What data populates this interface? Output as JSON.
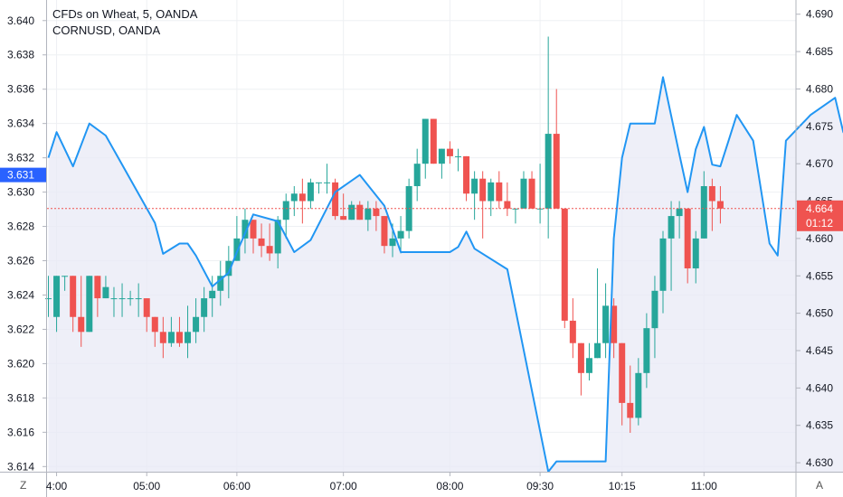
{
  "header": {
    "title": "CFDs on Wheat, 5, OANDA",
    "subtitle": "CORNUSD, OANDA"
  },
  "corner_left": "Z",
  "corner_right": "A",
  "colors": {
    "up": "#26a69a",
    "down": "#ef5350",
    "line": "#2196f3",
    "area": "#e8eaf6",
    "price_line": "#ef5350",
    "left_badge": "#2962ff"
  },
  "chart_data": {
    "type": "candlestick",
    "x_ticks": [
      "4:00",
      "05:00",
      "06:00",
      "07:00",
      "08:00",
      "09:30",
      "10:15",
      "11:00"
    ],
    "left_axis": {
      "ticks": [
        "3.640",
        "3.638",
        "3.636",
        "3.634",
        "3.632",
        "3.630",
        "3.628",
        "3.626",
        "3.624",
        "3.622",
        "3.620",
        "3.618",
        "3.616",
        "3.614"
      ],
      "range": [
        3.6137,
        3.6412
      ],
      "current_label": "3.631"
    },
    "right_axis": {
      "ticks": [
        "4.690",
        "4.685",
        "4.680",
        "4.675",
        "4.670",
        "4.665",
        "4.660",
        "4.655",
        "4.650",
        "4.645",
        "4.640",
        "4.635",
        "4.630"
      ],
      "range": [
        4.6288,
        4.6919
      ],
      "current_label": "4.664",
      "countdown_label": "01:12"
    },
    "candles_series": "CFDs on Wheat",
    "candles": [
      [
        4.652,
        4.655,
        4.6495,
        4.652
      ],
      [
        4.6495,
        4.655,
        4.6475,
        4.655
      ],
      [
        4.655,
        4.655,
        4.653,
        4.655
      ],
      [
        4.655,
        4.655,
        4.6475,
        4.6495
      ],
      [
        4.6495,
        4.655,
        4.6455,
        4.6475
      ],
      [
        4.6475,
        4.655,
        4.6475,
        4.655
      ],
      [
        4.655,
        4.655,
        4.6495,
        4.652
      ],
      [
        4.652,
        4.655,
        4.652,
        4.6535
      ],
      [
        4.652,
        4.6535,
        4.6495,
        4.652
      ],
      [
        4.652,
        4.654,
        4.6495,
        4.652
      ],
      [
        4.652,
        4.653,
        4.651,
        4.652
      ],
      [
        4.652,
        4.654,
        4.6495,
        4.652
      ],
      [
        4.652,
        4.652,
        4.6475,
        4.6495
      ],
      [
        4.6495,
        4.6495,
        4.6455,
        4.6475
      ],
      [
        4.6475,
        4.6495,
        4.644,
        4.646
      ],
      [
        4.646,
        4.6495,
        4.6455,
        4.6475
      ],
      [
        4.6475,
        4.6495,
        4.6455,
        4.646
      ],
      [
        4.646,
        4.651,
        4.644,
        4.6475
      ],
      [
        4.6475,
        4.652,
        4.646,
        4.6495
      ],
      [
        4.6495,
        4.6535,
        4.6475,
        4.652
      ],
      [
        4.652,
        4.655,
        4.6495,
        4.653
      ],
      [
        4.653,
        4.657,
        4.651,
        4.655
      ],
      [
        4.655,
        4.659,
        4.652,
        4.657
      ],
      [
        4.657,
        4.663,
        4.657,
        4.66
      ],
      [
        4.66,
        4.664,
        4.658,
        4.6625
      ],
      [
        4.6625,
        4.6625,
        4.658,
        4.66
      ],
      [
        4.66,
        4.662,
        4.6575,
        4.659
      ],
      [
        4.659,
        4.662,
        4.657,
        4.658
      ],
      [
        4.658,
        4.663,
        4.656,
        4.6625
      ],
      [
        4.6625,
        4.666,
        4.66,
        4.665
      ],
      [
        4.665,
        4.667,
        4.663,
        4.666
      ],
      [
        4.666,
        4.668,
        4.662,
        4.665
      ],
      [
        4.665,
        4.668,
        4.664,
        4.6675
      ],
      [
        4.6675,
        4.6675,
        4.666,
        4.6675
      ],
      [
        4.6675,
        4.67,
        4.666,
        4.6675
      ],
      [
        4.6675,
        4.668,
        4.6625,
        4.663
      ],
      [
        4.663,
        4.666,
        4.6625,
        4.6625
      ],
      [
        4.6625,
        4.665,
        4.6625,
        4.6645
      ],
      [
        4.6645,
        4.665,
        4.6625,
        4.6625
      ],
      [
        4.6625,
        4.665,
        4.661,
        4.664
      ],
      [
        4.664,
        4.665,
        4.661,
        4.663
      ],
      [
        4.663,
        4.663,
        4.658,
        4.659
      ],
      [
        4.659,
        4.662,
        4.6575,
        4.66
      ],
      [
        4.66,
        4.663,
        4.658,
        4.661
      ],
      [
        4.661,
        4.668,
        4.66,
        4.667
      ],
      [
        4.667,
        4.672,
        4.665,
        4.67
      ],
      [
        4.67,
        4.676,
        4.668,
        4.676
      ],
      [
        4.676,
        4.676,
        4.67,
        4.67
      ],
      [
        4.67,
        4.672,
        4.668,
        4.672
      ],
      [
        4.672,
        4.673,
        4.67,
        4.671
      ],
      [
        4.671,
        4.672,
        4.669,
        4.671
      ],
      [
        4.671,
        4.671,
        4.665,
        4.666
      ],
      [
        4.666,
        4.669,
        4.6625,
        4.668
      ],
      [
        4.668,
        4.669,
        4.66,
        4.665
      ],
      [
        4.665,
        4.668,
        4.663,
        4.6675
      ],
      [
        4.6675,
        4.669,
        4.664,
        4.665
      ],
      [
        4.665,
        4.6675,
        4.663,
        4.664
      ],
      [
        4.664,
        4.664,
        4.662,
        4.664
      ],
      [
        4.664,
        4.669,
        4.664,
        4.668
      ],
      [
        4.668,
        4.669,
        4.664,
        4.664
      ],
      [
        4.664,
        4.67,
        4.662,
        4.664
      ],
      [
        4.664,
        4.687,
        4.66,
        4.674
      ],
      [
        4.674,
        4.68,
        4.664,
        4.664
      ],
      [
        4.664,
        4.664,
        4.648,
        4.649
      ],
      [
        4.649,
        4.652,
        4.644,
        4.646
      ],
      [
        4.646,
        4.646,
        4.639,
        4.642
      ],
      [
        4.642,
        4.646,
        4.641,
        4.644
      ],
      [
        4.644,
        4.656,
        4.644,
        4.646
      ],
      [
        4.646,
        4.654,
        4.644,
        4.651
      ],
      [
        4.651,
        4.652,
        4.644,
        4.646
      ],
      [
        4.646,
        4.646,
        4.635,
        4.638
      ],
      [
        4.638,
        4.643,
        4.634,
        4.636
      ],
      [
        4.636,
        4.644,
        4.635,
        4.642
      ],
      [
        4.642,
        4.65,
        4.64,
        4.648
      ],
      [
        4.648,
        4.655,
        4.644,
        4.653
      ],
      [
        4.653,
        4.661,
        4.65,
        4.66
      ],
      [
        4.66,
        4.665,
        4.653,
        4.663
      ],
      [
        4.663,
        4.665,
        4.66,
        4.664
      ],
      [
        4.664,
        4.664,
        4.654,
        4.656
      ],
      [
        4.656,
        4.661,
        4.654,
        4.66
      ],
      [
        4.66,
        4.669,
        4.66,
        4.667
      ],
      [
        4.667,
        4.668,
        4.661,
        4.665
      ],
      [
        4.665,
        4.667,
        4.662,
        4.664
      ]
    ],
    "line_series": "CORNUSD",
    "line": [
      [
        0,
        3.632
      ],
      [
        1,
        3.6335
      ],
      [
        3,
        3.6315
      ],
      [
        5,
        3.634
      ],
      [
        7,
        3.6333
      ],
      [
        13,
        3.6282
      ],
      [
        14,
        3.6264
      ],
      [
        16,
        3.627
      ],
      [
        17,
        3.627
      ],
      [
        18,
        3.6263
      ],
      [
        20,
        3.6245
      ],
      [
        22,
        3.6253
      ],
      [
        23,
        3.6265
      ],
      [
        25,
        3.6287
      ],
      [
        28,
        3.6283
      ],
      [
        30,
        3.6265
      ],
      [
        32,
        3.6272
      ],
      [
        35,
        3.63
      ],
      [
        38,
        3.631
      ],
      [
        41,
        3.6292
      ],
      [
        43,
        3.6265
      ],
      [
        49,
        3.6265
      ],
      [
        50,
        3.6268
      ],
      [
        51,
        3.6277
      ],
      [
        52,
        3.6267
      ],
      [
        56,
        3.6255
      ],
      [
        61,
        3.6137
      ],
      [
        62,
        3.6143
      ],
      [
        68,
        3.6143
      ],
      [
        69,
        3.6273
      ],
      [
        70,
        3.632
      ],
      [
        71,
        3.634
      ],
      [
        74,
        3.634
      ],
      [
        75,
        3.6367
      ],
      [
        77,
        3.6322
      ],
      [
        78,
        3.63
      ],
      [
        79,
        3.6325
      ],
      [
        80,
        3.6338
      ],
      [
        81,
        3.6316
      ],
      [
        82,
        3.6315
      ],
      [
        83,
        3.633
      ],
      [
        84,
        3.6345
      ],
      [
        86,
        3.633
      ],
      [
        88,
        3.627
      ],
      [
        89,
        3.6263
      ],
      [
        90,
        3.633
      ],
      [
        93,
        3.6345
      ],
      [
        96,
        3.6355
      ],
      [
        97,
        3.6335
      ],
      [
        98,
        3.6328
      ],
      [
        99,
        3.632
      ],
      [
        101,
        3.631
      ],
      [
        102,
        3.633
      ],
      [
        103,
        3.6365
      ],
      [
        106,
        3.6333
      ],
      [
        107,
        3.6333
      ],
      [
        109,
        3.6353
      ],
      [
        110,
        3.6343
      ],
      [
        111,
        3.6315
      ]
    ]
  }
}
